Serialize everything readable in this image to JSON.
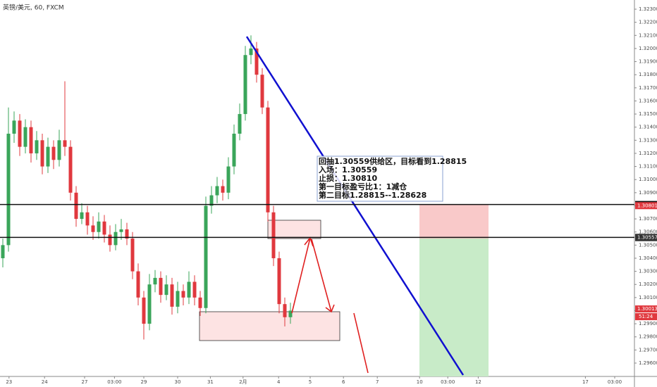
{
  "chart_data": {
    "type": "candlestick",
    "title": "英镑/美元, 60, FXCM",
    "x": [
      0,
      1,
      2,
      3,
      4,
      5,
      6,
      7,
      8,
      9,
      10,
      11,
      12,
      13,
      14,
      15,
      16,
      17,
      18,
      19,
      20,
      21,
      22,
      23,
      24,
      25,
      26,
      27,
      28,
      29,
      30,
      31,
      32,
      33,
      34,
      35,
      36,
      37,
      38,
      39,
      40,
      41,
      42,
      43,
      44,
      45,
      46,
      47,
      48,
      49,
      50,
      51
    ],
    "open": [
      1.304,
      1.305,
      1.3135,
      1.3145,
      1.3125,
      1.314,
      1.312,
      1.313,
      1.311,
      1.3125,
      1.3115,
      1.313,
      1.3125,
      1.309,
      1.307,
      1.3075,
      1.3065,
      1.306,
      1.3068,
      1.3058,
      1.305,
      1.306,
      1.3062,
      1.3055,
      1.303,
      1.301,
      1.299,
      1.302,
      1.3025,
      1.3012,
      1.302,
      1.3003,
      1.3015,
      1.301,
      1.3022,
      1.301,
      1.3002,
      1.308,
      1.3088,
      1.3095,
      1.309,
      1.311,
      1.3135,
      1.315,
      1.3195,
      1.32,
      1.318,
      1.3155,
      1.3075,
      1.304,
      1.3005,
      1.2995
    ],
    "high": [
      1.3055,
      1.3155,
      1.3152,
      1.315,
      1.3146,
      1.3145,
      1.3137,
      1.3135,
      1.3132,
      1.313,
      1.3138,
      1.3175,
      1.313,
      1.3095,
      1.3082,
      1.308,
      1.3072,
      1.3075,
      1.3073,
      1.3065,
      1.3066,
      1.307,
      1.3067,
      1.306,
      1.3036,
      1.3015,
      1.3028,
      1.3031,
      1.303,
      1.3027,
      1.3025,
      1.3022,
      1.302,
      1.303,
      1.3027,
      1.3015,
      1.3087,
      1.3095,
      1.3102,
      1.31,
      1.3117,
      1.3142,
      1.3158,
      1.3202,
      1.321,
      1.3205,
      1.3185,
      1.316,
      1.308,
      1.3045,
      1.301,
      1.3006
    ],
    "low": [
      1.3033,
      1.3045,
      1.3128,
      1.3118,
      1.312,
      1.3113,
      1.3115,
      1.3104,
      1.3105,
      1.3108,
      1.311,
      1.3118,
      1.3084,
      1.3064,
      1.3066,
      1.3058,
      1.3054,
      1.3055,
      1.3052,
      1.3045,
      1.3046,
      1.3054,
      1.305,
      1.3024,
      1.3004,
      1.2978,
      1.2985,
      1.3014,
      1.3006,
      1.3008,
      1.2997,
      1.2998,
      1.3004,
      1.3005,
      1.3004,
      1.2996,
      1.2998,
      1.3074,
      1.3082,
      1.3084,
      1.3085,
      1.3104,
      1.313,
      1.3145,
      1.3188,
      1.3174,
      1.315,
      1.3068,
      1.3034,
      1.2998,
      1.2988,
      1.299
    ],
    "close": [
      1.305,
      1.3135,
      1.3145,
      1.3125,
      1.314,
      1.312,
      1.313,
      1.311,
      1.3125,
      1.3115,
      1.313,
      1.3125,
      1.309,
      1.307,
      1.3075,
      1.3065,
      1.306,
      1.3068,
      1.3058,
      1.305,
      1.306,
      1.3062,
      1.3055,
      1.303,
      1.301,
      1.299,
      1.302,
      1.3025,
      1.3012,
      1.302,
      1.3003,
      1.3015,
      1.301,
      1.3022,
      1.301,
      1.3002,
      1.308,
      1.3088,
      1.3095,
      1.309,
      1.311,
      1.3135,
      1.315,
      1.3195,
      1.32,
      1.318,
      1.3155,
      1.3075,
      1.304,
      1.3005,
      1.2995,
      1.3
    ],
    "up_color": "#3aa55a",
    "down_color": "#e0383e",
    "xlim": [
      -0.5,
      112
    ],
    "xticks": [
      {
        "value": 1.1,
        "label": "23"
      },
      {
        "value": 7.4,
        "label": "24"
      },
      {
        "value": 14.5,
        "label": "27"
      },
      {
        "value": 19.8,
        "label": "03:00"
      },
      {
        "value": 25,
        "label": "29"
      },
      {
        "value": 31,
        "label": "30"
      },
      {
        "value": 36.8,
        "label": "31"
      },
      {
        "value": 42.6,
        "label": "2月"
      },
      {
        "value": 48.9,
        "label": "4"
      },
      {
        "value": 54.5,
        "label": "5"
      },
      {
        "value": 60.4,
        "label": "6"
      },
      {
        "value": 66.4,
        "label": "7"
      },
      {
        "value": 73.9,
        "label": "10"
      },
      {
        "value": 78.9,
        "label": "03:00"
      },
      {
        "value": 84.3,
        "label": "12"
      },
      {
        "value": 103.3,
        "label": "17"
      },
      {
        "value": 108.5,
        "label": "03:00"
      }
    ],
    "ylim": [
      1.29498,
      1.3237
    ],
    "yticks": [
      {
        "value": 1.296,
        "label": "1.29600"
      },
      {
        "value": 1.297,
        "label": "1.29700"
      },
      {
        "value": 1.298,
        "label": "1.29800"
      },
      {
        "value": 1.299,
        "label": "1.29900"
      },
      {
        "value": 1.3,
        "label": "1.30000"
      },
      {
        "value": 1.301,
        "label": "1.30100"
      },
      {
        "value": 1.302,
        "label": "1.30200"
      },
      {
        "value": 1.303,
        "label": "1.30300"
      },
      {
        "value": 1.304,
        "label": "1.30400"
      },
      {
        "value": 1.305,
        "label": "1.30500"
      },
      {
        "value": 1.306,
        "label": "1.30600"
      },
      {
        "value": 1.307,
        "label": "1.30700"
      },
      {
        "value": 1.308,
        "label": "1.30800"
      },
      {
        "value": 1.309,
        "label": "1.30900"
      },
      {
        "value": 1.31,
        "label": "1.31000"
      },
      {
        "value": 1.311,
        "label": "1.31100"
      },
      {
        "value": 1.312,
        "label": "1.31200"
      },
      {
        "value": 1.313,
        "label": "1.31300"
      },
      {
        "value": 1.314,
        "label": "1.31400"
      },
      {
        "value": 1.315,
        "label": "1.31500"
      },
      {
        "value": 1.316,
        "label": "1.31600"
      },
      {
        "value": 1.317,
        "label": "1.31700"
      },
      {
        "value": 1.318,
        "label": "1.31800"
      },
      {
        "value": 1.319,
        "label": "1.31900"
      },
      {
        "value": 1.32,
        "label": "1.32000"
      },
      {
        "value": 1.321,
        "label": "1.32100"
      },
      {
        "value": 1.322,
        "label": "1.32200"
      },
      {
        "value": 1.323,
        "label": "1.32300"
      }
    ],
    "grid": false,
    "levels": [
      {
        "value": 1.3081,
        "label": "1.30810"
      },
      {
        "value": 1.30559,
        "label": "1.30559"
      }
    ],
    "price_labels": [
      {
        "value": 1.30801,
        "label": "1.30801",
        "color": "#e0383e"
      },
      {
        "value": 1.30557,
        "label": "1.30557",
        "color": "#333333"
      },
      {
        "value": 1.30013,
        "label": "1.30013",
        "color": "#e0383e"
      }
    ],
    "countdown": "51:24",
    "annotations": [
      "回抽1.30559供给区，目标看到1.28815",
      "入场：1.30559",
      "止损：1.30810",
      "第一目标盈亏比1：1减仓",
      "第二目标1.28815--1.28628"
    ]
  }
}
